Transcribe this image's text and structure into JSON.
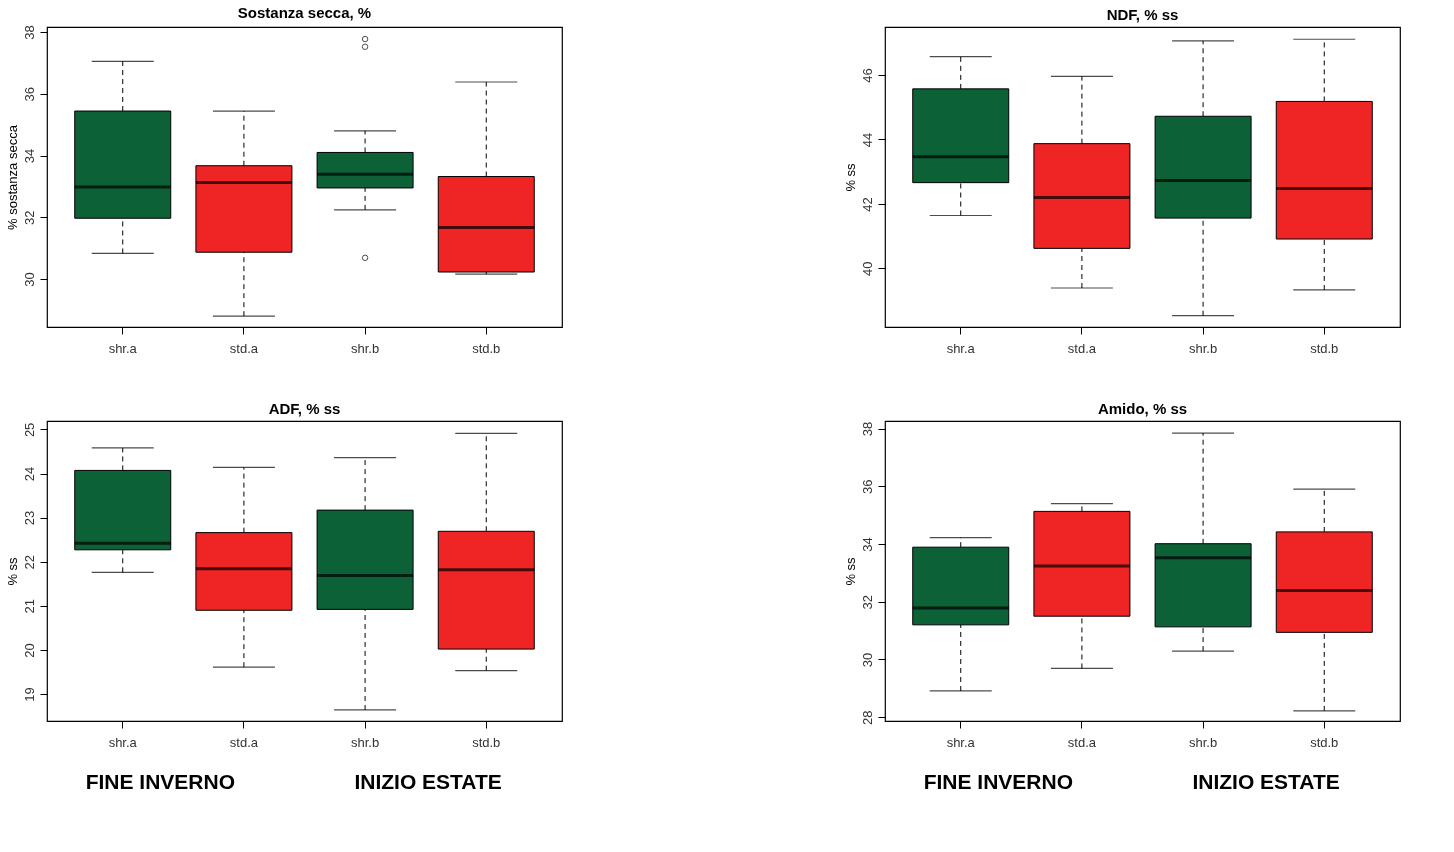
{
  "chart_data": [
    {
      "type": "box",
      "title": "Sostanza secca, %",
      "ylabel": "% sostanza secca",
      "categories": [
        "shr.a",
        "std.a",
        "shr.b",
        "std.b"
      ],
      "colors": [
        "#0d6137",
        "#ee2524",
        "#0d6137",
        "#ee2524"
      ],
      "ylim": [
        28.45,
        38.16
      ],
      "yticks": [
        30,
        32,
        34,
        36,
        38
      ],
      "grid": false,
      "boxes": [
        {
          "low": 30.83,
          "q1": 31.97,
          "median": 32.98,
          "q3": 35.44,
          "high": 37.05
        },
        {
          "low": 28.8,
          "q1": 30.87,
          "median": 33.13,
          "q3": 33.67,
          "high": 35.44
        },
        {
          "low": 32.24,
          "q1": 32.95,
          "median": 33.39,
          "q3": 34.1,
          "high": 34.8,
          "outliers": [
            37.77,
            37.52,
            30.69
          ]
        },
        {
          "low": 30.16,
          "q1": 30.23,
          "median": 31.67,
          "q3": 33.32,
          "high": 36.38
        }
      ]
    },
    {
      "type": "box",
      "title": "NDF, % ss",
      "ylabel": "% ss",
      "categories": [
        "shr.a",
        "std.a",
        "shr.b",
        "std.b"
      ],
      "colors": [
        "#0d6137",
        "#ee2524",
        "#0d6137",
        "#ee2524"
      ],
      "ylim": [
        38.18,
        47.49
      ],
      "yticks": [
        40,
        42,
        44,
        46
      ],
      "grid": false,
      "boxes": [
        {
          "low": 41.64,
          "q1": 42.66,
          "median": 43.46,
          "q3": 45.57,
          "high": 46.57
        },
        {
          "low": 39.39,
          "q1": 40.62,
          "median": 42.2,
          "q3": 43.87,
          "high": 45.96
        },
        {
          "low": 38.53,
          "q1": 41.56,
          "median": 42.73,
          "q3": 44.72,
          "high": 47.06
        },
        {
          "low": 39.33,
          "q1": 40.91,
          "median": 42.48,
          "q3": 45.18,
          "high": 47.11
        }
      ]
    },
    {
      "type": "box",
      "title": "ADF, % ss",
      "ylabel": "% ss",
      "categories": [
        "shr.a",
        "std.a",
        "shr.b",
        "std.b"
      ],
      "colors": [
        "#0d6137",
        "#ee2524",
        "#0d6137",
        "#ee2524"
      ],
      "ylim": [
        18.39,
        25.19
      ],
      "yticks": [
        19,
        20,
        21,
        22,
        23,
        24,
        25
      ],
      "grid": false,
      "annotations": [
        "FINE INVERNO",
        "INIZIO ESTATE"
      ],
      "boxes": [
        {
          "low": 21.76,
          "q1": 22.27,
          "median": 22.42,
          "q3": 24.07,
          "high": 24.58
        },
        {
          "low": 19.61,
          "q1": 20.9,
          "median": 21.84,
          "q3": 22.66,
          "high": 24.14
        },
        {
          "low": 18.64,
          "q1": 20.92,
          "median": 21.69,
          "q3": 23.17,
          "high": 24.36
        },
        {
          "low": 19.53,
          "q1": 20.02,
          "median": 21.82,
          "q3": 22.69,
          "high": 24.91
        }
      ]
    },
    {
      "type": "box",
      "title": "Amido, % ss",
      "ylabel": "% ss",
      "categories": [
        "shr.a",
        "std.a",
        "shr.b",
        "std.b"
      ],
      "colors": [
        "#0d6137",
        "#ee2524",
        "#0d6137",
        "#ee2524"
      ],
      "ylim": [
        27.87,
        38.26
      ],
      "yticks": [
        28,
        30,
        32,
        34,
        36,
        38
      ],
      "grid": false,
      "annotations": [
        "FINE INVERNO",
        "INIZIO ESTATE"
      ],
      "boxes": [
        {
          "low": 28.91,
          "q1": 31.2,
          "median": 31.78,
          "q3": 33.89,
          "high": 34.22
        },
        {
          "low": 29.69,
          "q1": 31.5,
          "median": 33.24,
          "q3": 35.13,
          "high": 35.4
        },
        {
          "low": 30.29,
          "q1": 31.13,
          "median": 33.52,
          "q3": 34.01,
          "high": 37.84
        },
        {
          "low": 28.22,
          "q1": 30.94,
          "median": 32.39,
          "q3": 34.42,
          "high": 35.9
        }
      ]
    }
  ]
}
